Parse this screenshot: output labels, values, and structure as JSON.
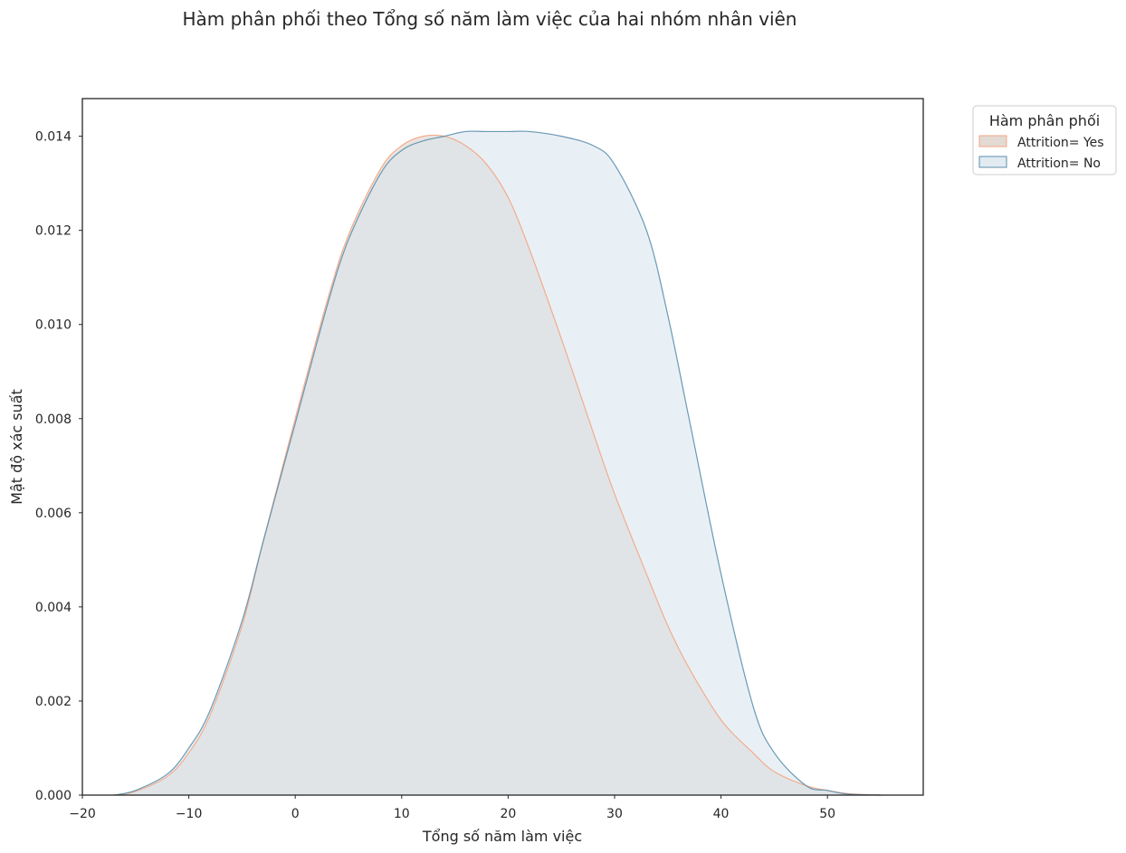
{
  "chart_data": {
    "type": "area",
    "title": "Hàm phân phối theo Tổng số năm làm việc của hai nhóm nhân viên",
    "xlabel": "Tổng số năm làm việc",
    "ylabel": "Mật độ xác suất",
    "xlim": [
      -20,
      59
    ],
    "ylim": [
      0,
      0.0148
    ],
    "xticks": [
      "−20",
      "−10",
      "0",
      "10",
      "20",
      "30",
      "40",
      "50"
    ],
    "xtick_values": [
      -20,
      -10,
      0,
      10,
      20,
      30,
      40,
      50
    ],
    "yticks": [
      "0.000",
      "0.002",
      "0.004",
      "0.006",
      "0.008",
      "0.010",
      "0.012",
      "0.014"
    ],
    "ytick_values": [
      0,
      0.002,
      0.004,
      0.006,
      0.008,
      0.01,
      0.012,
      0.014
    ],
    "grid": false,
    "legend": {
      "title": "Hàm phân phối",
      "placement": "outside-top-right"
    },
    "x": [
      -17,
      -15,
      -12,
      -10,
      -8,
      -5,
      -3,
      0,
      3,
      5,
      8,
      10,
      12,
      14,
      16,
      18,
      20,
      22,
      25,
      28,
      30,
      33,
      35,
      37,
      40,
      43,
      45,
      48,
      50,
      52,
      55
    ],
    "series": [
      {
        "name": "Attrition= Yes",
        "color": "#f4a582",
        "fill": "#d9cdc6",
        "values": [
          0,
          8e-05,
          0.0004,
          0.0009,
          0.0017,
          0.0036,
          0.0054,
          0.008,
          0.0105,
          0.0119,
          0.0133,
          0.0138,
          0.014,
          0.014,
          0.0138,
          0.0134,
          0.0127,
          0.0116,
          0.0097,
          0.0077,
          0.0064,
          0.0047,
          0.0036,
          0.0027,
          0.0016,
          0.0009,
          0.0005,
          0.0002,
          0.0001,
          3e-05,
          0
        ]
      },
      {
        "name": "Attrition= No",
        "color": "#5b8fad",
        "fill": "#d7e4ec",
        "values": [
          0,
          0.0001,
          0.00045,
          0.001,
          0.0018,
          0.0037,
          0.0054,
          0.0079,
          0.0104,
          0.0118,
          0.0132,
          0.0137,
          0.0139,
          0.014,
          0.0141,
          0.0141,
          0.0141,
          0.0141,
          0.014,
          0.0138,
          0.0134,
          0.012,
          0.0102,
          0.008,
          0.0047,
          0.0019,
          0.0009,
          0.0002,
          0.0001,
          2e-05,
          0
        ]
      }
    ]
  }
}
